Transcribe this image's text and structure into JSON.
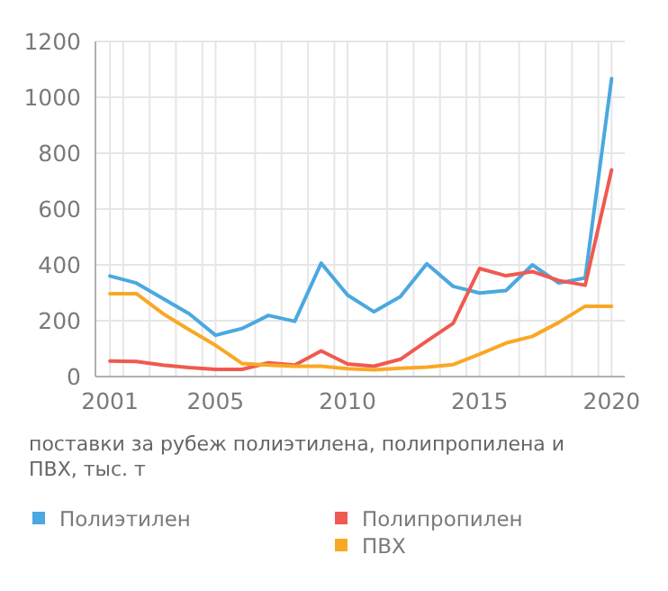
{
  "chart_data": {
    "type": "line",
    "title": "поставки за рубеж полиэтилена, полипропилена и ПВХ, тыс. т",
    "x": [
      2001,
      2002,
      2003,
      2004,
      2005,
      2006,
      2007,
      2008,
      2009,
      2010,
      2011,
      2012,
      2013,
      2014,
      2015,
      2016,
      2017,
      2018,
      2019,
      2020
    ],
    "series": [
      {
        "name": "Полиэтилен",
        "color": "#4ba8e0",
        "values": [
          360,
          335,
          280,
          225,
          148,
          172,
          219,
          198,
          406,
          292,
          232,
          286,
          404,
          323,
          299,
          308,
          400,
          335,
          353,
          1067
        ]
      },
      {
        "name": "Полипропилен",
        "color": "#ef5a50",
        "values": [
          56,
          54,
          41,
          32,
          26,
          26,
          49,
          41,
          92,
          45,
          37,
          62,
          127,
          191,
          387,
          361,
          376,
          344,
          327,
          740
        ]
      },
      {
        "name": "ПВХ",
        "color": "#f9a825",
        "values": [
          297,
          297,
          226,
          168,
          112,
          47,
          41,
          37,
          37,
          28,
          24,
          30,
          34,
          43,
          80,
          120,
          144,
          194,
          252,
          252
        ]
      }
    ],
    "xlim": [
      2000.45,
      2020.5
    ],
    "xticks": [
      2001,
      2005,
      2010,
      2015,
      2020,
      {
        "value": 2001.5,
        "label": null
      },
      {
        "value": 2002.5,
        "label": null
      },
      {
        "value": 2003.5,
        "label": null
      },
      {
        "value": 2004.5,
        "label": null
      },
      {
        "value": 2006.5,
        "label": null
      },
      {
        "value": 2007.5,
        "label": null
      },
      {
        "value": 2008.5,
        "label": null
      },
      {
        "value": 2009.5,
        "label": null
      },
      {
        "value": 2011.5,
        "label": null
      },
      {
        "value": 2012.5,
        "label": null
      },
      {
        "value": 2013.5,
        "label": null
      },
      {
        "value": 2014.5,
        "label": null
      },
      {
        "value": 2016.5,
        "label": null
      },
      {
        "value": 2017.5,
        "label": null
      },
      {
        "value": 2018.5,
        "label": null
      },
      {
        "value": 2019.5,
        "label": null
      }
    ],
    "ylim": [
      0,
      1200
    ],
    "yticks": [
      0,
      200,
      400,
      600,
      800,
      1000,
      1200
    ],
    "grid": true,
    "legend": "bottom",
    "marker": "none",
    "line_style": "solid"
  }
}
